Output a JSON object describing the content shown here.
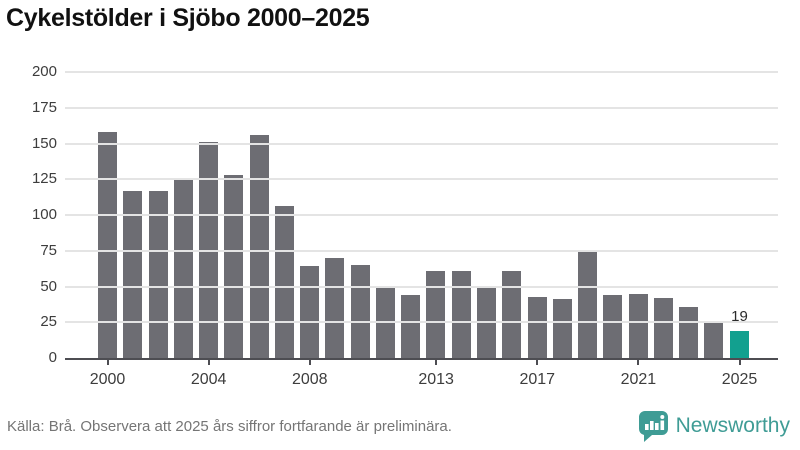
{
  "title": "Cykelstölder i Sjöbo 2000–2025",
  "footer": {
    "source_text": "Källa: Brå. Observera att 2025 års siffror fortfarande är preliminära.",
    "brand": "Newsworthy"
  },
  "colors": {
    "bar": "#6d6d73",
    "highlight": "#12a08f",
    "brand": "#3f9c95",
    "grid": "#e4e4e4",
    "axis_line": "#4d4d52",
    "axis_text": "#3d3d3d",
    "title_text": "#111111",
    "footer_text": "#757575"
  },
  "chart_data": {
    "type": "bar",
    "title": "Cykelstölder i Sjöbo 2000–2025",
    "x": [
      2000,
      2001,
      2002,
      2003,
      2004,
      2005,
      2006,
      2007,
      2008,
      2009,
      2010,
      2011,
      2012,
      2013,
      2014,
      2015,
      2016,
      2017,
      2018,
      2019,
      2020,
      2021,
      2022,
      2023,
      2024,
      2025
    ],
    "values": [
      158,
      117,
      117,
      125,
      151,
      128,
      156,
      106,
      64,
      70,
      65,
      50,
      44,
      61,
      61,
      49,
      61,
      43,
      41,
      74,
      44,
      45,
      42,
      36,
      25,
      19
    ],
    "highlight_index": 25,
    "data_labels": [
      {
        "index": 25,
        "text": "19"
      }
    ],
    "xlabel": "",
    "ylabel": "",
    "ylim": [
      0,
      200
    ],
    "yticks": [
      0,
      25,
      50,
      75,
      100,
      125,
      150,
      175,
      200
    ],
    "xtick_indices": [
      0,
      4,
      8,
      13,
      17,
      21,
      25
    ],
    "xtick_labels": [
      "2000",
      "2004",
      "2008",
      "2013",
      "2017",
      "2021",
      "2025"
    ],
    "grid": "horizontal",
    "legend": "none"
  }
}
